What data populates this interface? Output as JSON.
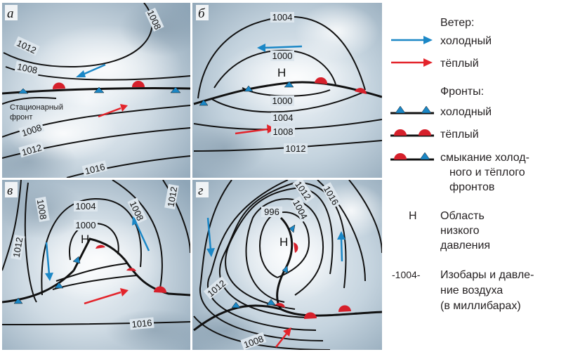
{
  "panels": [
    {
      "letter": "а",
      "isobars": [
        "1008",
        "1012",
        "1008",
        "1008",
        "1012",
        "1016"
      ],
      "front_label": [
        "Стационарный",
        "фронт"
      ]
    },
    {
      "letter": "б",
      "isobars": [
        "1004",
        "1000",
        "1000",
        "1004",
        "1008",
        "1012"
      ],
      "low": "Н"
    },
    {
      "letter": "в",
      "isobars": [
        "1008",
        "1004",
        "1000",
        "1008",
        "1012",
        "1012",
        "1016"
      ],
      "low": "Н"
    },
    {
      "letter": "г",
      "isobars": [
        "996",
        "1012",
        "1016",
        "1004",
        "1012",
        "1008"
      ],
      "low": "Н"
    }
  ],
  "legend": {
    "wind_title": "Ветер:",
    "wind_cold": "холодный",
    "wind_warm": "тёплый",
    "fronts_title": "Фронты:",
    "front_cold": "холодный",
    "front_warm": "тёплый",
    "front_occluded": [
      "смыкание холод-",
      "ного и тёплого",
      "фронтов"
    ],
    "low_symbol": "Н",
    "low_text": [
      "Область",
      "низкого",
      "давления"
    ],
    "isobar_symbol": "-1004-",
    "isobar_text": [
      "Изобары и давле-",
      "ние воздуха",
      "(в миллибарах)"
    ]
  },
  "colors": {
    "cold_wind": "#1b87c6",
    "warm_wind": "#e3242b",
    "cold_front": "#1b87c6",
    "warm_front": "#d6202b",
    "isobar": "#111111"
  }
}
